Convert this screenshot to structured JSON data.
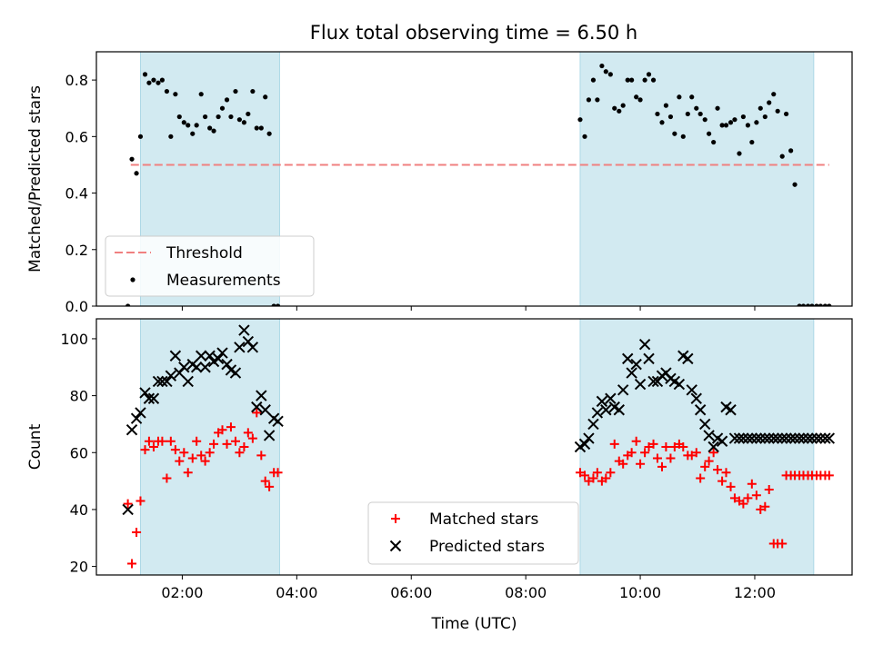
{
  "figure": {
    "title": "Flux total observing time = 6.50 h"
  },
  "chart_data": [
    {
      "type": "scatter",
      "ylabel": "Matched/Predicted stars",
      "xlabel": "",
      "xlim": [
        0.5,
        13.7
      ],
      "ylim": [
        0,
        0.9
      ],
      "yticks": [
        0.0,
        0.2,
        0.4,
        0.6,
        0.8
      ],
      "ytick_labels": [
        "0.0",
        "0.2",
        "0.4",
        "0.6",
        "0.8"
      ],
      "xticks": [
        2,
        4,
        6,
        8,
        10,
        12
      ],
      "show_xtick_labels": false,
      "grid": false,
      "shaded_intervals": [
        [
          1.27,
          3.7
        ],
        [
          8.95,
          13.03
        ]
      ],
      "shade_color": "#add8e6",
      "legend": {
        "placement": "lower-left",
        "entries": [
          "Threshold",
          "Measurements"
        ]
      },
      "threshold": {
        "name": "Threshold",
        "value": 0.5,
        "x_range": [
          1.1,
          13.3
        ],
        "color": "#f08080"
      },
      "series": [
        {
          "name": "Measurements",
          "marker": "dot",
          "color": "#000000",
          "x": [
            1.05,
            1.12,
            1.2,
            1.27,
            1.35,
            1.42,
            1.5,
            1.58,
            1.65,
            1.73,
            1.8,
            1.88,
            1.95,
            2.03,
            2.1,
            2.18,
            2.25,
            2.33,
            2.4,
            2.48,
            2.55,
            2.63,
            2.7,
            2.78,
            2.85,
            2.93,
            3.0,
            3.08,
            3.15,
            3.23,
            3.3,
            3.38,
            3.45,
            3.52,
            3.6,
            3.67,
            8.95,
            9.03,
            9.1,
            9.18,
            9.25,
            9.33,
            9.4,
            9.48,
            9.55,
            9.63,
            9.7,
            9.78,
            9.85,
            9.93,
            10.0,
            10.08,
            10.15,
            10.23,
            10.3,
            10.38,
            10.45,
            10.53,
            10.6,
            10.68,
            10.75,
            10.83,
            10.9,
            10.98,
            11.05,
            11.13,
            11.2,
            11.28,
            11.35,
            11.43,
            11.5,
            11.58,
            11.65,
            11.73,
            11.8,
            11.88,
            11.95,
            12.03,
            12.1,
            12.18,
            12.25,
            12.33,
            12.4,
            12.48,
            12.55,
            12.63,
            12.7,
            12.78,
            12.85,
            12.93,
            13.0,
            13.08,
            13.15,
            13.23,
            13.3
          ],
          "y": [
            0.0,
            0.52,
            0.47,
            0.6,
            0.82,
            0.79,
            0.8,
            0.79,
            0.8,
            0.76,
            0.6,
            0.75,
            0.67,
            0.65,
            0.64,
            0.61,
            0.64,
            0.75,
            0.67,
            0.63,
            0.62,
            0.67,
            0.7,
            0.73,
            0.67,
            0.76,
            0.66,
            0.65,
            0.68,
            0.76,
            0.63,
            0.63,
            0.74,
            0.61,
            0.0,
            0.0,
            0.66,
            0.6,
            0.73,
            0.8,
            0.73,
            0.85,
            0.83,
            0.82,
            0.7,
            0.69,
            0.71,
            0.8,
            0.8,
            0.74,
            0.73,
            0.8,
            0.82,
            0.8,
            0.68,
            0.65,
            0.71,
            0.67,
            0.61,
            0.74,
            0.6,
            0.68,
            0.74,
            0.7,
            0.68,
            0.66,
            0.61,
            0.58,
            0.7,
            0.64,
            0.64,
            0.65,
            0.66,
            0.54,
            0.67,
            0.64,
            0.58,
            0.65,
            0.7,
            0.67,
            0.72,
            0.75,
            0.69,
            0.53,
            0.68,
            0.55,
            0.43,
            0.0,
            0.0,
            0.0,
            0.0,
            0.0,
            0.0,
            0.0,
            0.0
          ]
        }
      ]
    },
    {
      "type": "scatter",
      "ylabel": "Count",
      "xlabel": "Time (UTC)",
      "xlim": [
        0.5,
        13.7
      ],
      "ylim": [
        17,
        107
      ],
      "yticks": [
        20,
        40,
        60,
        80,
        100
      ],
      "ytick_labels": [
        "20",
        "40",
        "60",
        "80",
        "100"
      ],
      "xticks": [
        2,
        4,
        6,
        8,
        10,
        12
      ],
      "xtick_labels": [
        "02:00",
        "04:00",
        "06:00",
        "08:00",
        "10:00",
        "12:00"
      ],
      "grid": false,
      "shaded_intervals": [
        [
          1.27,
          3.7
        ],
        [
          8.95,
          13.03
        ]
      ],
      "shade_color": "#add8e6",
      "legend": {
        "placement": "lower-center",
        "entries": [
          "Matched stars",
          "Predicted stars"
        ]
      },
      "series": [
        {
          "name": "Matched stars",
          "marker": "plus",
          "color": "#ff0000",
          "x": [
            1.05,
            1.12,
            1.2,
            1.27,
            1.35,
            1.42,
            1.5,
            1.58,
            1.65,
            1.73,
            1.8,
            1.88,
            1.95,
            2.03,
            2.1,
            2.18,
            2.25,
            2.33,
            2.4,
            2.48,
            2.55,
            2.63,
            2.7,
            2.78,
            2.85,
            2.93,
            3.0,
            3.08,
            3.15,
            3.23,
            3.3,
            3.38,
            3.45,
            3.52,
            3.6,
            3.67,
            8.95,
            9.03,
            9.1,
            9.18,
            9.25,
            9.33,
            9.4,
            9.48,
            9.55,
            9.63,
            9.7,
            9.78,
            9.85,
            9.93,
            10.0,
            10.08,
            10.15,
            10.23,
            10.3,
            10.38,
            10.45,
            10.53,
            10.6,
            10.68,
            10.75,
            10.83,
            10.9,
            10.98,
            11.05,
            11.13,
            11.2,
            11.28,
            11.35,
            11.43,
            11.5,
            11.58,
            11.65,
            11.73,
            11.8,
            11.88,
            11.95,
            12.03,
            12.1,
            12.18,
            12.25,
            12.33,
            12.4,
            12.48,
            12.55,
            12.63,
            12.7,
            12.78,
            12.85,
            12.93,
            13.0,
            13.08,
            13.15,
            13.23,
            13.3
          ],
          "y": [
            42,
            21,
            32,
            43,
            61,
            64,
            62,
            64,
            64,
            51,
            64,
            61,
            57,
            60,
            53,
            58,
            64,
            59,
            57,
            60,
            63,
            67,
            68,
            63,
            69,
            64,
            60,
            62,
            67,
            65,
            74,
            59,
            50,
            48,
            53,
            53,
            53,
            52,
            50,
            51,
            53,
            50,
            51,
            53,
            63,
            57,
            56,
            59,
            60,
            64,
            56,
            60,
            62,
            63,
            58,
            55,
            62,
            58,
            62,
            63,
            62,
            59,
            59,
            60,
            51,
            55,
            57,
            60,
            54,
            50,
            53,
            48,
            44,
            43,
            42,
            44,
            49,
            45,
            40,
            41,
            47,
            28,
            28,
            28,
            52,
            52,
            52,
            52,
            52,
            52,
            52,
            52,
            52,
            52,
            52
          ],
          "y_note": ""
        },
        {
          "name": "Predicted stars",
          "marker": "x",
          "color": "#000000",
          "x": [
            1.05,
            1.12,
            1.2,
            1.27,
            1.35,
            1.42,
            1.5,
            1.58,
            1.65,
            1.73,
            1.8,
            1.88,
            1.95,
            2.03,
            2.1,
            2.18,
            2.25,
            2.33,
            2.4,
            2.48,
            2.55,
            2.63,
            2.7,
            2.78,
            2.85,
            2.93,
            3.0,
            3.08,
            3.15,
            3.23,
            3.3,
            3.38,
            3.45,
            3.52,
            3.6,
            3.67,
            8.95,
            9.03,
            9.1,
            9.18,
            9.25,
            9.33,
            9.4,
            9.48,
            9.55,
            9.63,
            9.7,
            9.78,
            9.85,
            9.93,
            10.0,
            10.08,
            10.15,
            10.23,
            10.3,
            10.38,
            10.45,
            10.53,
            10.6,
            10.68,
            10.75,
            10.83,
            10.9,
            10.98,
            11.05,
            11.13,
            11.2,
            11.28,
            11.35,
            11.43,
            11.5,
            11.58,
            11.65,
            11.73,
            11.8,
            11.88,
            11.95,
            12.03,
            12.1,
            12.18,
            12.25,
            12.33,
            12.4,
            12.48,
            12.55,
            12.63,
            12.7,
            12.78,
            12.85,
            12.93,
            13.0,
            13.08,
            13.15,
            13.23,
            13.3
          ],
          "y": [
            40,
            68,
            72,
            74,
            81,
            79,
            79,
            85,
            85,
            85,
            87,
            94,
            88,
            90,
            85,
            91,
            90,
            94,
            90,
            94,
            92,
            93,
            95,
            91,
            89,
            88,
            97,
            103,
            99,
            97,
            76,
            80,
            75,
            66,
            72,
            71,
            62,
            63,
            65,
            70,
            74,
            78,
            75,
            79,
            76,
            75,
            82,
            93,
            88,
            91,
            84,
            98,
            93,
            85,
            85,
            87,
            88,
            86,
            85,
            84,
            94,
            93,
            82,
            79,
            75,
            70,
            66,
            62,
            65,
            64,
            76,
            75,
            65,
            65,
            65,
            65,
            65,
            65,
            65,
            65,
            65,
            65,
            65,
            65,
            65,
            65,
            65,
            65,
            65,
            65,
            65,
            65,
            65,
            65,
            65
          ]
        }
      ]
    }
  ]
}
